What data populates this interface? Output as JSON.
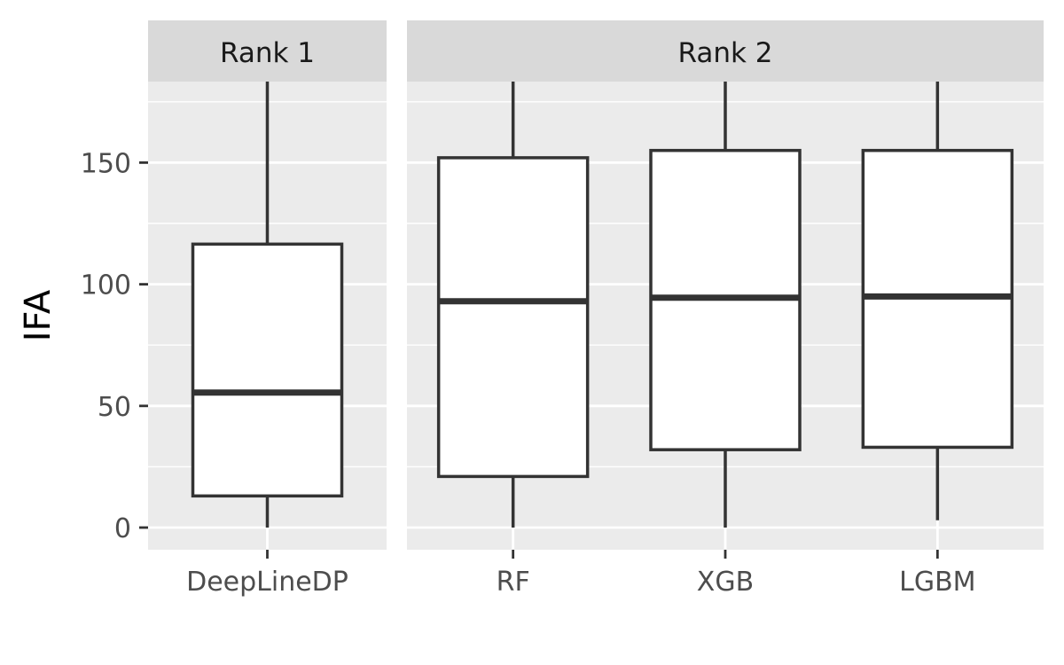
{
  "chart_data": {
    "type": "boxplot",
    "ylabel": "IFA",
    "xlabel": "",
    "ylim": [
      -8,
      184
    ],
    "y_ticks": [
      0,
      50,
      100,
      150
    ],
    "y_tick_labels": [
      "0",
      "50",
      "100",
      "150"
    ],
    "grid": true,
    "colors": {
      "panel_background": "#EBEBEB",
      "strip_background": "#D9D9D9",
      "box_fill": "#FFFFFF",
      "box_line": "#333333",
      "grid_line": "#FFFFFF"
    },
    "facets": [
      {
        "label": "Rank 1",
        "groups": [
          {
            "name": "DeepLineDP",
            "whisker_low": 0,
            "q1": 13,
            "median": 55.5,
            "q3": 116.5,
            "whisker_high": 184
          }
        ]
      },
      {
        "label": "Rank 2",
        "groups": [
          {
            "name": "RF",
            "whisker_low": 0,
            "q1": 21,
            "median": 93,
            "q3": 152,
            "whisker_high": 184
          },
          {
            "name": "XGB",
            "whisker_low": 0,
            "q1": 32,
            "median": 94.5,
            "q3": 155,
            "whisker_high": 184
          },
          {
            "name": "LGBM",
            "whisker_low": 3,
            "q1": 33,
            "median": 95,
            "q3": 155,
            "whisker_high": 184
          }
        ]
      }
    ]
  }
}
